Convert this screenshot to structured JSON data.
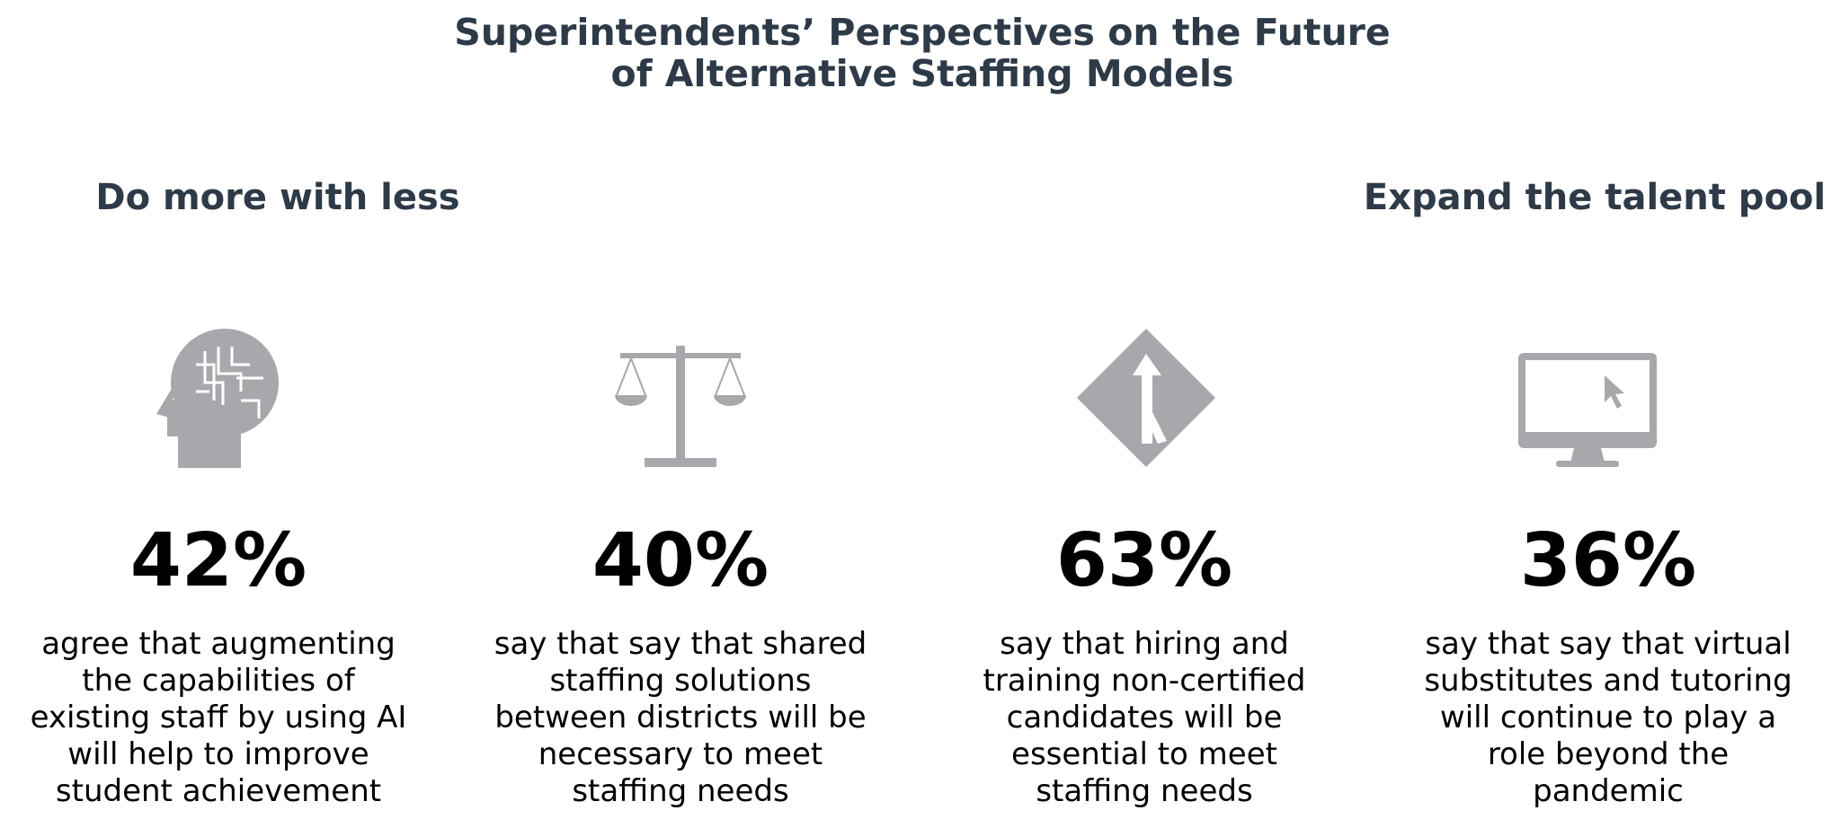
{
  "header": {
    "title": [
      "Superintendents’ Perspectives on the Future",
      "of Alternative Staffing Models"
    ]
  },
  "sections": [
    {
      "heading": "Do more with less"
    },
    {
      "heading": "Expand the talent pool"
    }
  ],
  "items": [
    {
      "stat": "42%",
      "description": [
        "agree that augmenting",
        "the capabilities of",
        "existing staff by using AI",
        "will help to improve",
        "student achievement"
      ]
    },
    {
      "stat": "40%",
      "description": [
        "say that say that shared",
        "staffing solutions",
        "between districts will be",
        "necessary to meet",
        "staffing needs"
      ]
    },
    {
      "stat": "63%",
      "description": [
        "say that hiring and",
        "training non-certified",
        "candidates will be",
        "essential to meet",
        "staffing needs"
      ]
    },
    {
      "stat": "36%",
      "description": [
        "say that say that virtual",
        "substitutes and tutoring",
        "will continue to play a",
        "role beyond the",
        "pandemic"
      ]
    }
  ]
}
